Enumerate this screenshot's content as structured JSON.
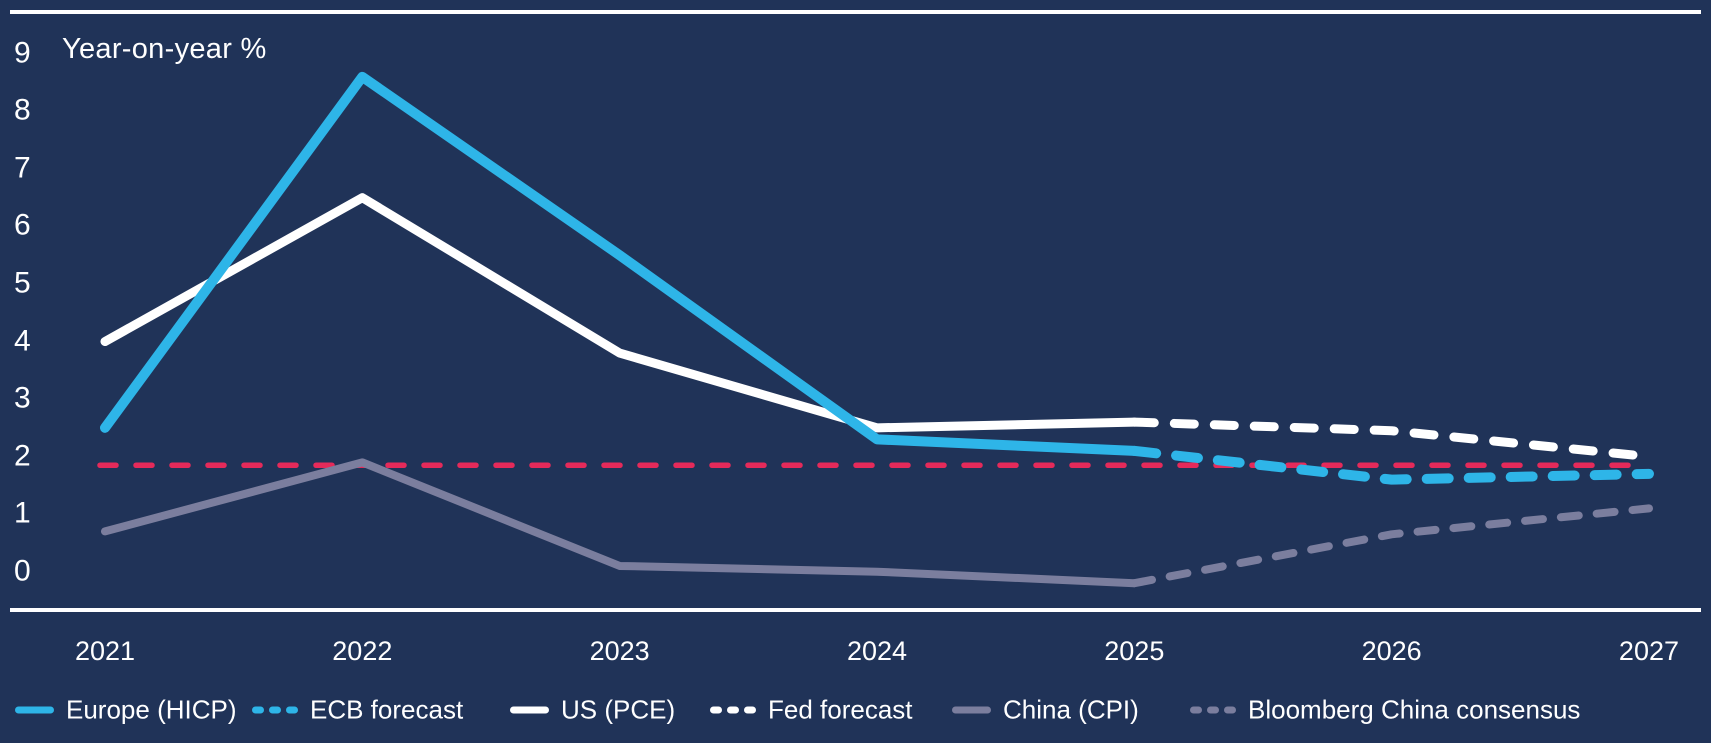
{
  "colors": {
    "background": "#203358",
    "europe": "#2eb5e8",
    "us": "#ffffff",
    "china": "#7b7e9e",
    "target": "#e52a5a",
    "text": "#ffffff",
    "axis_line": "#ffffff"
  },
  "chart_data": {
    "type": "line",
    "title": "",
    "ylabel": "Year-on-year %",
    "xlabel": "",
    "x": [
      2021,
      2022,
      2023,
      2024,
      2025,
      2026,
      2027
    ],
    "x_labels": [
      "2021",
      "2022",
      "2023",
      "2024",
      "2025",
      "2026",
      "2027"
    ],
    "y_ticks": [
      "9",
      "8",
      "7",
      "6",
      "5",
      "4",
      "3",
      "2",
      "1",
      "0"
    ],
    "ylim": [
      -0.7,
      9.7
    ],
    "grid": false,
    "legend_position": "bottom",
    "series": [
      {
        "name": "Europe (HICP)",
        "color_key": "europe",
        "style": "solid",
        "x": [
          2021,
          2022,
          2023,
          2024,
          2025
        ],
        "values": [
          2.5,
          8.6,
          5.5,
          2.3,
          2.1
        ]
      },
      {
        "name": "ECB forecast",
        "color_key": "europe",
        "style": "dashed",
        "x": [
          2025,
          2026,
          2027
        ],
        "values": [
          2.1,
          1.6,
          1.7
        ]
      },
      {
        "name": "US (PCE)",
        "color_key": "us",
        "style": "solid",
        "x": [
          2021,
          2022,
          2023,
          2024,
          2025
        ],
        "values": [
          4.0,
          6.5,
          3.8,
          2.5,
          2.6
        ]
      },
      {
        "name": "Fed forecast",
        "color_key": "us",
        "style": "dashed",
        "x": [
          2025,
          2026,
          2027
        ],
        "values": [
          2.6,
          2.45,
          2.0
        ]
      },
      {
        "name": "China (CPI)",
        "color_key": "china",
        "style": "solid",
        "x": [
          2021,
          2022,
          2023,
          2024,
          2025
        ],
        "values": [
          0.7,
          1.9,
          0.1,
          0.0,
          -0.2
        ]
      },
      {
        "name": "Bloomberg China consensus",
        "color_key": "china",
        "style": "dashed",
        "x": [
          2025,
          2026,
          2027
        ],
        "values": [
          -0.2,
          0.65,
          1.1
        ]
      }
    ],
    "reference_line": {
      "value": 1.85,
      "style": "dashed",
      "color_key": "target"
    }
  }
}
